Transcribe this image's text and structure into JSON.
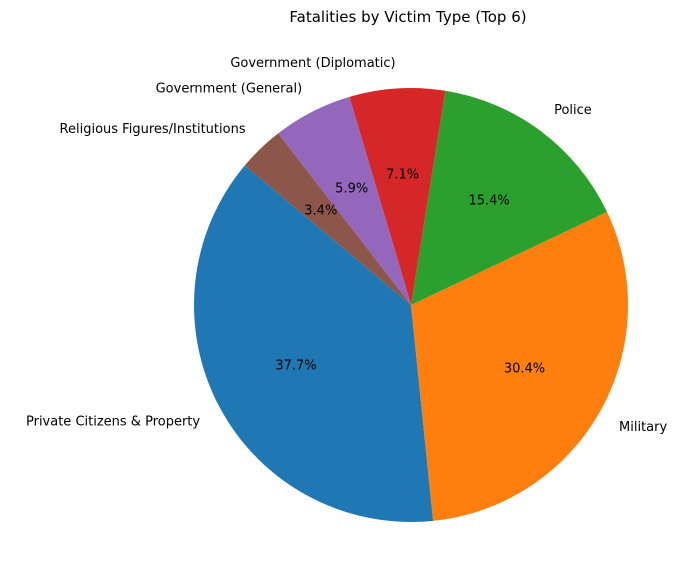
{
  "chart_data": {
    "type": "pie",
    "title": "Fatalities by Victim Type (Top 6)",
    "categories": [
      "Private Citizens & Property",
      "Military",
      "Police",
      "Government (Diplomatic)",
      "Government (General)",
      "Religious Figures/Institutions"
    ],
    "values": [
      37.7,
      30.4,
      15.4,
      7.1,
      5.9,
      3.4
    ],
    "pct_labels": [
      "37.7%",
      "30.4%",
      "15.4%",
      "7.1%",
      "5.9%",
      "3.4%"
    ],
    "colors": [
      "#1f77b4",
      "#ff7f0e",
      "#2ca02c",
      "#d62728",
      "#9467bd",
      "#8c564b"
    ],
    "start_angle_deg": 140,
    "direction": "counterclockwise",
    "legend": "none",
    "category_label_position": "outside",
    "pct_label_position": "inside",
    "background": "#ffffff",
    "text_color": "#000000"
  }
}
